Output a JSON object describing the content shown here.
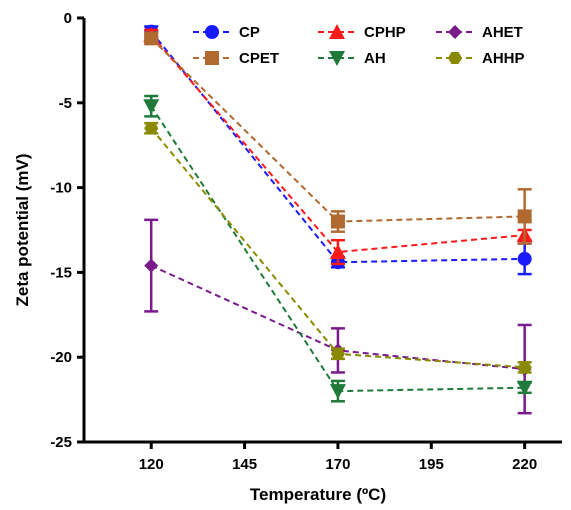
{
  "chart_data": {
    "type": "line",
    "xlabel": "Temperature (ºC)",
    "ylabel": "Zeta potential (mV)",
    "xlim": [
      102,
      230
    ],
    "ylim": [
      -25,
      0
    ],
    "xticks": [
      120,
      145,
      170,
      195,
      220
    ],
    "yticks": [
      0,
      -5,
      -10,
      -15,
      -20,
      -25
    ],
    "x": [
      120,
      170,
      220
    ],
    "grid": false,
    "legend": "top-right",
    "series": [
      {
        "name": "CP",
        "color": "#1a1aff",
        "marker": "circle",
        "values": [
          -0.8,
          -14.4,
          -14.2
        ],
        "errors": [
          0.3,
          0.3,
          0.9
        ]
      },
      {
        "name": "CPHP",
        "color": "#ff1a1a",
        "marker": "triangle-up",
        "values": [
          -1.0,
          -13.8,
          -12.8
        ],
        "errors": [
          0.3,
          0.7,
          0.3
        ]
      },
      {
        "name": "AHET",
        "color": "#7a1a8c",
        "marker": "diamond",
        "values": [
          -14.6,
          -19.6,
          -20.7
        ],
        "errors": [
          2.7,
          1.3,
          2.6
        ]
      },
      {
        "name": "CPET",
        "color": "#b06a30",
        "marker": "square",
        "values": [
          -1.2,
          -12.0,
          -11.7
        ],
        "errors": [
          0.3,
          0.6,
          1.6
        ]
      },
      {
        "name": "AH",
        "color": "#1f7a3a",
        "marker": "triangle-down",
        "values": [
          -5.2,
          -22.0,
          -21.8
        ],
        "errors": [
          0.6,
          0.6,
          0.3
        ]
      },
      {
        "name": "AHHP",
        "color": "#8a8a00",
        "marker": "hexagon",
        "values": [
          -6.5,
          -19.8,
          -20.6
        ],
        "errors": [
          0.3,
          0.3,
          0.3
        ]
      }
    ]
  }
}
